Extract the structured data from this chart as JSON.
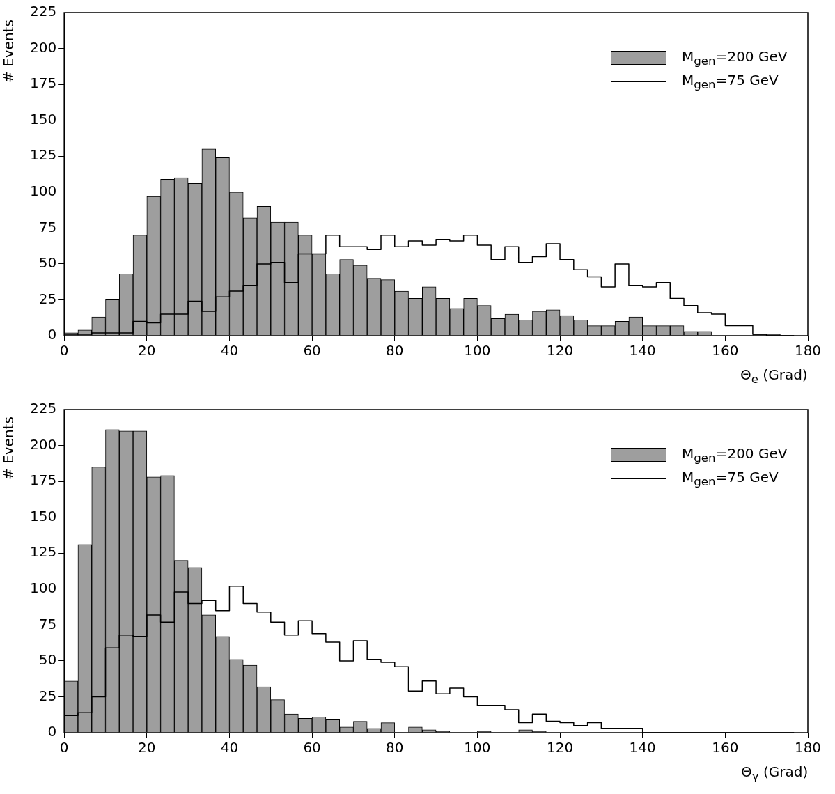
{
  "chart_data": [
    {
      "type": "histogram",
      "xlabel": "Θ$_{e}$ (Grad)",
      "ylabel": "# Events",
      "legend": "top right",
      "bins": [
        0,
        3.33,
        6.67,
        10,
        13.33,
        16.67,
        20,
        23.33,
        26.67,
        30,
        33.33,
        36.67,
        40,
        43.33,
        46.67,
        50,
        53.33,
        56.67,
        60,
        63.33,
        66.67,
        70,
        73.33,
        76.67,
        80,
        83.33,
        86.67,
        90,
        93.33,
        96.67,
        100,
        103.33,
        106.67,
        110,
        113.33,
        116.67,
        120,
        123.33,
        126.67,
        130,
        133.33,
        136.67,
        140,
        143.33,
        146.67,
        150,
        153.33,
        156.67,
        160,
        163.33,
        166.67,
        170,
        173.33,
        176.67,
        180
      ],
      "series": [
        {
          "name": "M$_{gen}$=200 GeV",
          "color": "#9e9e9e",
          "values": [
            2,
            4,
            13,
            25,
            43,
            70,
            97,
            109,
            110,
            106,
            130,
            124,
            100,
            82,
            90,
            79,
            79,
            70,
            57,
            43,
            53,
            49,
            40,
            39,
            31,
            26,
            34,
            26,
            19,
            26,
            21,
            12,
            15,
            11,
            17,
            18,
            14,
            11,
            7,
            7,
            10,
            13,
            7,
            7,
            7,
            3,
            3,
            0,
            0,
            0,
            1,
            1,
            0,
            0
          ]
        },
        {
          "name": "M$_{gen}$=75 GeV",
          "type": "step",
          "color": "#000000",
          "x": [
            0,
            3.33,
            6.67,
            10,
            13.33,
            16.67,
            20,
            23.33,
            26.67,
            30,
            33.33,
            36.67,
            40,
            43.33,
            46.67,
            50,
            53.33,
            56.67,
            60,
            63.33,
            66.67,
            70,
            73.33,
            76.67,
            80,
            83.33,
            86.67,
            90,
            93.33,
            96.67,
            100,
            103.33,
            106.67,
            110,
            113.33,
            116.67,
            120,
            123.33,
            126.67,
            130,
            133.33,
            136.67,
            140,
            143.33,
            146.67,
            150,
            153.33,
            156.67,
            160,
            163.33,
            166.67,
            170,
            173.33,
            176.67
          ],
          "values": [
            1,
            1,
            1,
            2,
            2,
            2,
            10,
            9,
            15,
            15,
            24,
            17,
            27,
            31,
            35,
            50,
            51,
            37,
            57,
            57,
            70,
            62,
            62,
            60,
            70,
            62,
            66,
            63,
            67,
            66,
            70,
            63,
            53,
            62,
            51,
            55,
            64,
            53,
            46,
            41,
            34,
            50,
            35,
            34,
            37,
            26,
            21,
            16,
            15,
            7,
            7,
            1,
            0,
            0
          ]
        }
      ],
      "xlim": [
        0,
        180
      ],
      "xticks": [
        0,
        20,
        40,
        60,
        80,
        100,
        120,
        140,
        160,
        180
      ],
      "ylim": [
        0,
        225
      ],
      "yticks": [
        0,
        25,
        50,
        75,
        100,
        125,
        150,
        175,
        200,
        225
      ]
    },
    {
      "type": "histogram",
      "xlabel": "Θ$_{γ}$ (Grad)",
      "ylabel": "# Events",
      "legend": "top right",
      "bins": [
        0,
        3.33,
        6.67,
        10,
        13.33,
        16.67,
        20,
        23.33,
        26.67,
        30,
        33.33,
        36.67,
        40,
        43.33,
        46.67,
        50,
        53.33,
        56.67,
        60,
        63.33,
        66.67,
        70,
        73.33,
        76.67,
        80,
        83.33,
        86.67,
        90,
        93.33,
        96.67,
        100,
        103.33,
        106.67,
        110,
        113.33,
        116.67,
        120,
        123.33,
        126.67,
        130,
        133.33,
        136.67,
        140,
        143.33,
        146.67,
        150,
        153.33,
        156.67,
        160,
        163.33,
        166.67,
        170,
        173.33,
        176.67,
        180
      ],
      "series": [
        {
          "name": "M$_{gen}$=200 GeV",
          "color": "#9e9e9e",
          "values": [
            36,
            131,
            185,
            211,
            210,
            210,
            178,
            179,
            120,
            115,
            82,
            67,
            51,
            47,
            32,
            23,
            13,
            10,
            11,
            9,
            4,
            8,
            3,
            7,
            0,
            4,
            2,
            1,
            0,
            0,
            1,
            0,
            0,
            2,
            1,
            0,
            0,
            0,
            0,
            0,
            0,
            0,
            0,
            0,
            0,
            0,
            0,
            0,
            0,
            0,
            0,
            0,
            0,
            0
          ]
        },
        {
          "name": "M$_{gen}$=75 GeV",
          "type": "step",
          "color": "#000000",
          "x": [
            0,
            3.33,
            6.67,
            10,
            13.33,
            16.67,
            20,
            23.33,
            26.67,
            30,
            33.33,
            36.67,
            40,
            43.33,
            46.67,
            50,
            53.33,
            56.67,
            60,
            63.33,
            66.67,
            70,
            73.33,
            76.67,
            80,
            83.33,
            86.67,
            90,
            93.33,
            96.67,
            100,
            103.33,
            106.67,
            110,
            113.33,
            116.67,
            120,
            123.33,
            126.67,
            130,
            133.33,
            136.67,
            140,
            143.33,
            146.67,
            150,
            153.33,
            156.67,
            160,
            163.33,
            166.67,
            170,
            173.33,
            176.67
          ],
          "values": [
            25,
            12,
            14,
            25,
            59,
            68,
            67,
            82,
            77,
            98,
            90,
            92,
            85,
            102,
            90,
            84,
            77,
            68,
            78,
            69,
            63,
            50,
            64,
            51,
            49,
            46,
            29,
            36,
            27,
            31,
            25,
            19,
            19,
            16,
            7,
            13,
            8,
            7,
            5,
            7,
            3,
            3,
            3,
            0,
            0,
            0,
            0,
            0,
            0,
            0,
            0,
            0,
            0,
            0
          ]
        }
      ],
      "xlim": [
        0,
        180
      ],
      "xticks": [
        0,
        20,
        40,
        60,
        80,
        100,
        120,
        140,
        160,
        180
      ],
      "ylim": [
        0,
        225
      ],
      "yticks": [
        0,
        25,
        50,
        75,
        100,
        125,
        150,
        175,
        200,
        225
      ]
    }
  ]
}
